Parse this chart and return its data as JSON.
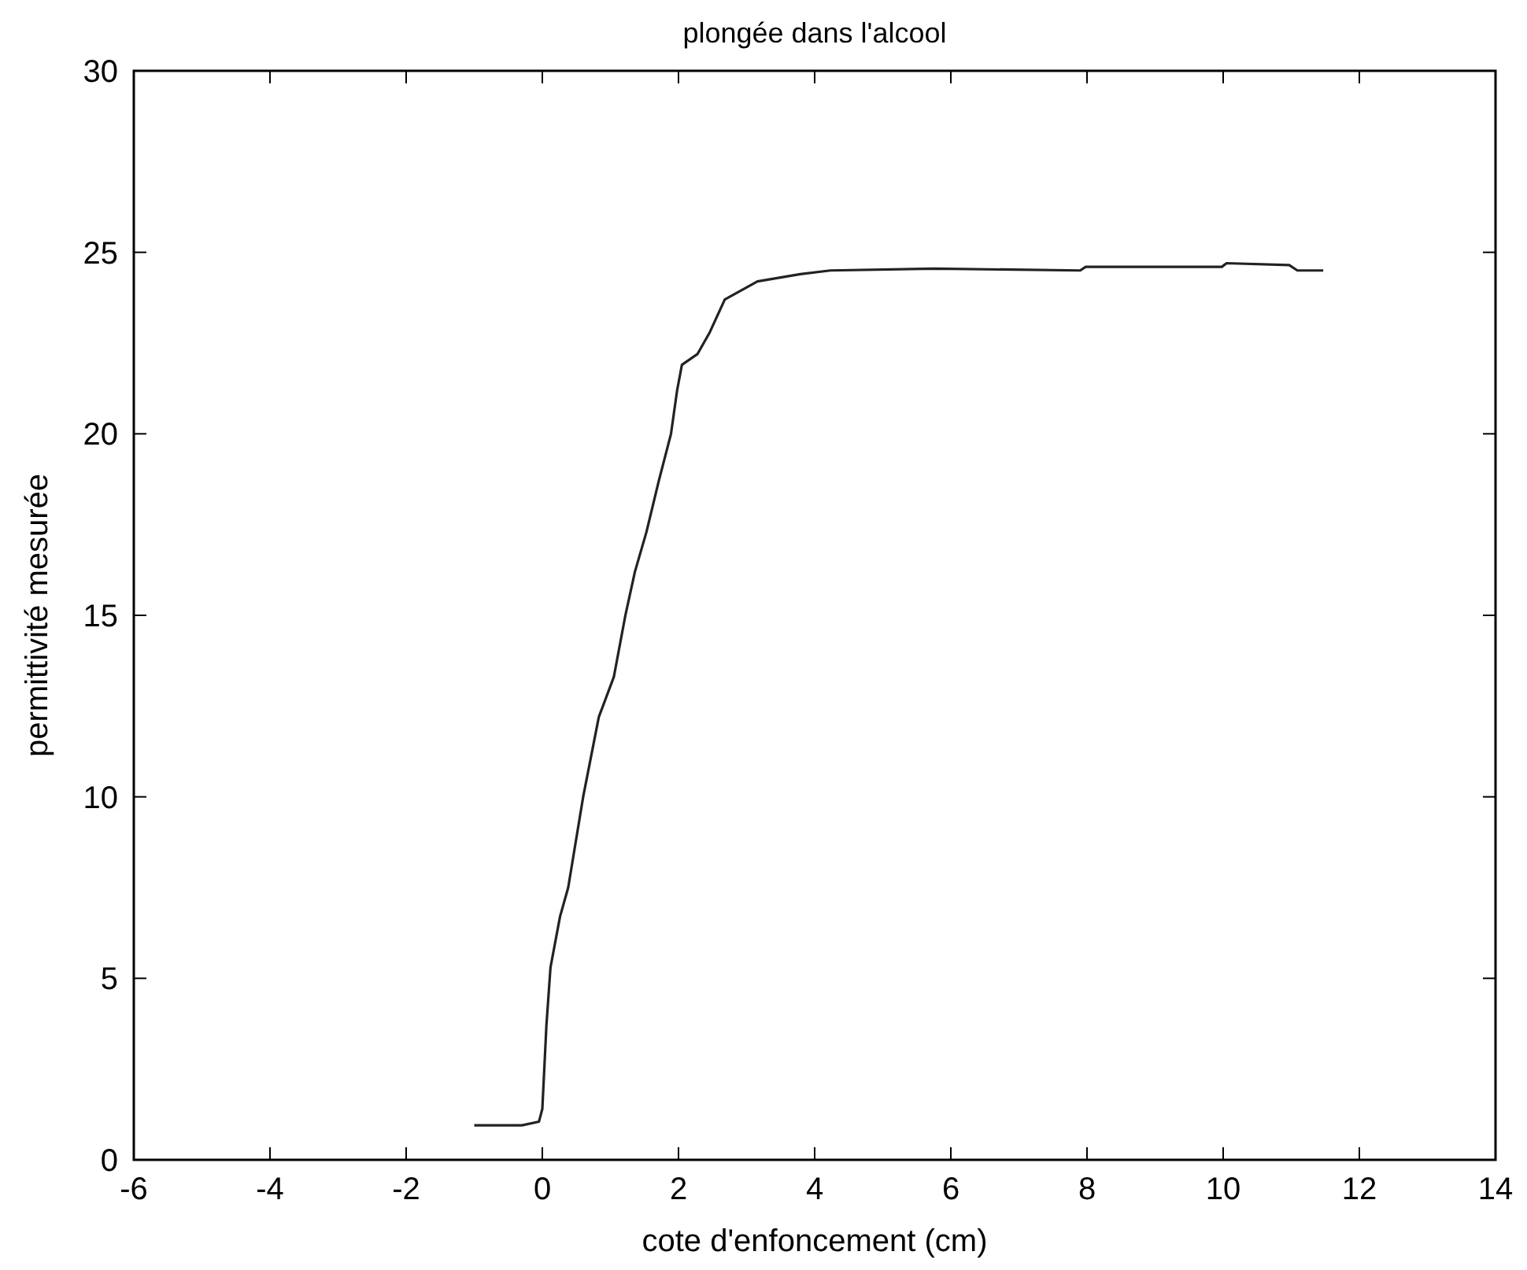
{
  "chart_data": {
    "type": "line",
    "title": "plongée dans l'alcool",
    "xlabel": "cote d'enfoncement (cm)",
    "ylabel": "permittivité mesurée",
    "xlim": [
      -6,
      14
    ],
    "xticks": [
      -6,
      -4,
      -2,
      0,
      2,
      4,
      6,
      8,
      10,
      12,
      14
    ],
    "ylim": [
      0,
      30
    ],
    "yticks": [
      0,
      5,
      10,
      15,
      20,
      25,
      30
    ],
    "grid": false,
    "series": [
      {
        "color": "#222222",
        "x": [
          -1,
          -0.3,
          -0.05,
          0,
          0.06,
          0.12,
          0.26,
          0.38,
          0.6,
          0.83,
          1.05,
          1.22,
          1.36,
          1.53,
          1.71,
          1.89,
          1.98,
          2.05,
          2.28,
          2.46,
          2.68,
          3.16,
          3.79,
          4.23,
          5.76,
          7.9,
          7.98,
          9.98,
          10.05,
          10.97,
          11.09,
          11.47
        ],
        "values": [
          0.95,
          0.95,
          1.05,
          1.4,
          3.7,
          5.3,
          6.7,
          7.5,
          10.0,
          12.2,
          13.3,
          15.0,
          16.2,
          17.3,
          18.7,
          20.0,
          21.2,
          21.9,
          22.2,
          22.8,
          23.7,
          24.2,
          24.4,
          24.5,
          24.55,
          24.5,
          24.6,
          24.6,
          24.7,
          24.65,
          24.5,
          24.5
        ]
      }
    ]
  }
}
